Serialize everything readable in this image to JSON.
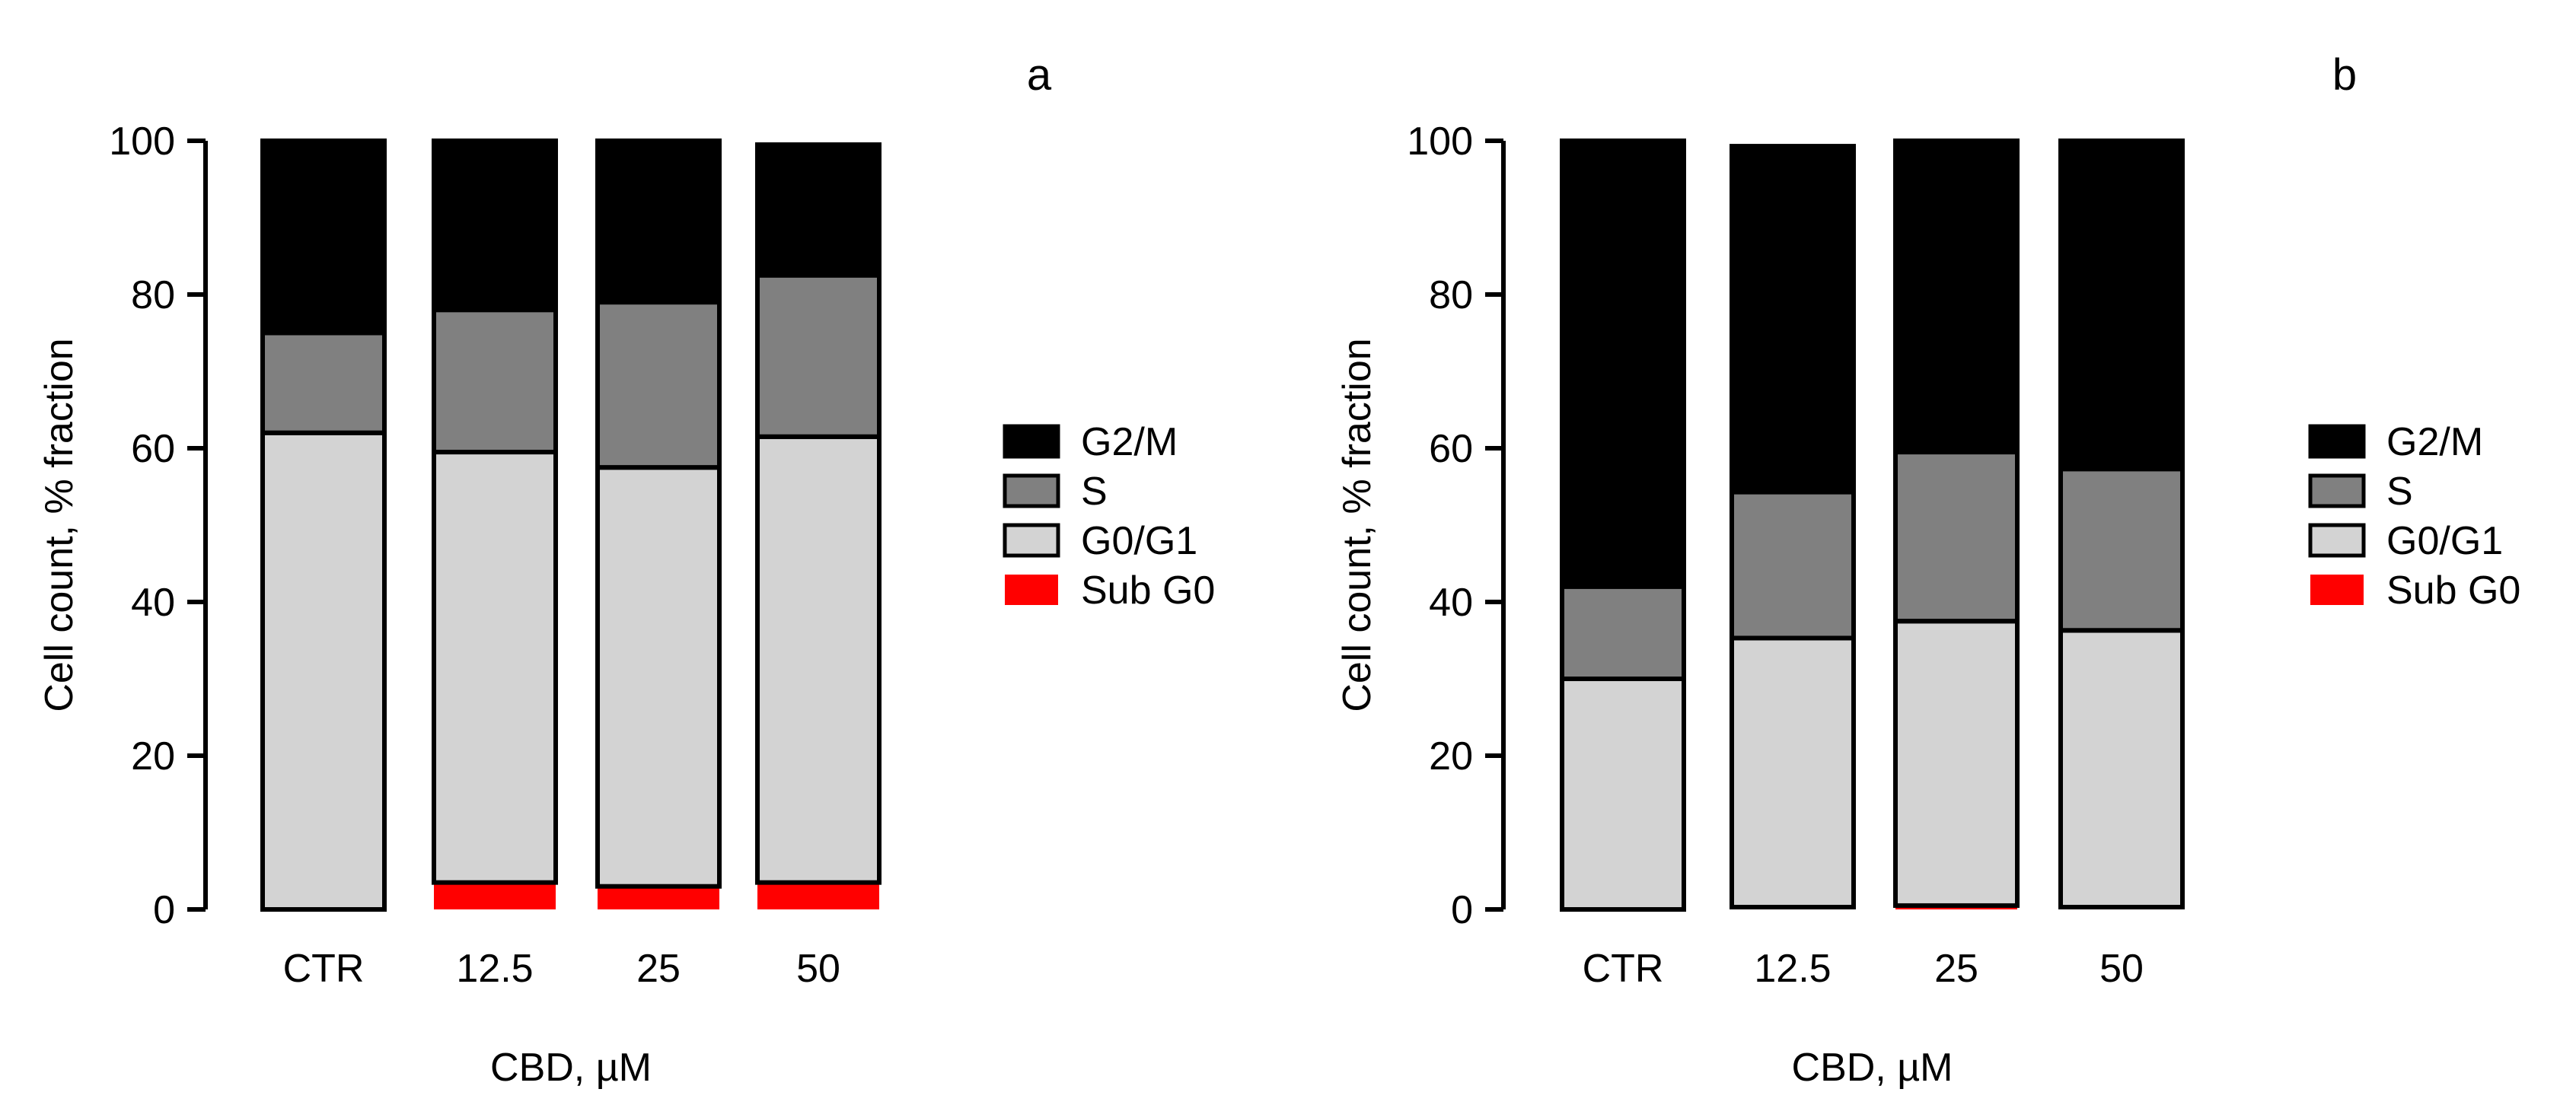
{
  "chart_data": [
    {
      "type": "bar",
      "stacked": true,
      "panel_label": "a",
      "categories": [
        "CTR",
        "12.5",
        "25",
        "50"
      ],
      "xlabel": "CBD, µM",
      "ylabel": "Cell count, % fraction",
      "ylim": [
        0,
        100
      ],
      "yticks": [
        0,
        20,
        40,
        60,
        80,
        100
      ],
      "series": [
        {
          "name": "Sub G0",
          "color": "#ff0000",
          "values": [
            0,
            3.5,
            3,
            3.5
          ]
        },
        {
          "name": "G0/G1",
          "color": "#d3d3d3",
          "values": [
            62,
            56,
            54.5,
            58
          ]
        },
        {
          "name": "S",
          "color": "#808080",
          "values": [
            13,
            18.5,
            21.5,
            21
          ]
        },
        {
          "name": "G2/M",
          "color": "#000000",
          "values": [
            25,
            22,
            21,
            17
          ]
        }
      ],
      "legend": [
        "G2/M",
        "S",
        "G0/G1",
        "Sub G0"
      ],
      "legend_position": "right"
    },
    {
      "type": "bar",
      "stacked": true,
      "panel_label": "b",
      "categories": [
        "CTR",
        "12.5",
        "25",
        "50"
      ],
      "xlabel": "CBD, µM",
      "ylabel": "Cell count, % fraction",
      "ylim": [
        0,
        100
      ],
      "yticks": [
        0,
        20,
        40,
        60,
        80,
        100
      ],
      "series": [
        {
          "name": "Sub G0",
          "color": "#ff0000",
          "values": [
            0,
            0.3,
            0.5,
            0.3
          ]
        },
        {
          "name": "G0/G1",
          "color": "#d3d3d3",
          "values": [
            30,
            35,
            37,
            36
          ]
        },
        {
          "name": "S",
          "color": "#808080",
          "values": [
            12,
            19,
            22,
            21
          ]
        },
        {
          "name": "G2/M",
          "color": "#000000",
          "values": [
            58,
            45,
            40.5,
            42.7
          ]
        }
      ],
      "legend": [
        "G2/M",
        "S",
        "G0/G1",
        "Sub G0"
      ],
      "legend_position": "right"
    }
  ]
}
